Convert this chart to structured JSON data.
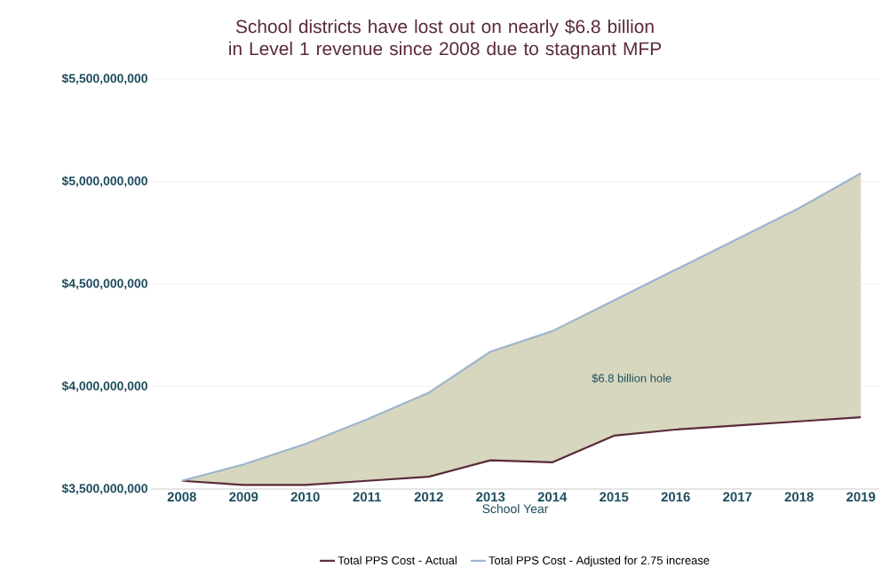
{
  "chart_data": {
    "type": "line",
    "title": "School districts have lost out on nearly $6.8 billion in Level 1 revenue since 2008 due to stagnant MFP",
    "xlabel": "School Year",
    "x": [
      2008,
      2009,
      2010,
      2011,
      2012,
      2013,
      2014,
      2015,
      2016,
      2017,
      2018,
      2019
    ],
    "series": [
      {
        "name": "Total PPS Cost - Actual",
        "color": "#5a2a3a",
        "values": [
          3540000000,
          3520000000,
          3520000000,
          3540000000,
          3560000000,
          3640000000,
          3630000000,
          3760000000,
          3790000000,
          3810000000,
          3830000000,
          3850000000
        ]
      },
      {
        "name": "Total PPS Cost - Adjusted for 2.75 increase",
        "color": "#9fb4cc",
        "values": [
          3540000000,
          3620000000,
          3720000000,
          3840000000,
          3970000000,
          4170000000,
          4270000000,
          4420000000,
          4570000000,
          4720000000,
          4870000000,
          5040000000
        ],
        "lower": [
          3540000000,
          3520000000,
          3520000000,
          3540000000,
          3560000000,
          3640000000,
          3630000000,
          3760000000,
          3790000000,
          3810000000,
          3830000000,
          3850000000
        ],
        "upper": [
          3540000000,
          3620000000,
          3720000000,
          3840000000,
          3970000000,
          4170000000,
          4270000000,
          4420000000,
          4570000000,
          4720000000,
          4870000000,
          5040000000
        ]
      }
    ],
    "xlim": [
      2007.5,
      2019.3
    ],
    "xticks": [
      2008,
      2009,
      2010,
      2011,
      2012,
      2013,
      2014,
      2015,
      2016,
      2017,
      2018,
      2019
    ],
    "ylim": [
      3500000000,
      5500000000
    ],
    "yticks": [
      {
        "value": 3500000000,
        "label": "$3,500,000,000"
      },
      {
        "value": 4000000000,
        "label": "$4,000,000,000"
      },
      {
        "value": 4500000000,
        "label": "$4,500,000,000"
      },
      {
        "value": 5000000000,
        "label": "$5,000,000,000"
      },
      {
        "value": 5500000000,
        "label": "$5,500,000,000"
      }
    ],
    "annotations": [
      "$6.8 billion hole"
    ],
    "grid": "y",
    "legend": "bottom",
    "marker": "none",
    "line_style": "solid"
  }
}
